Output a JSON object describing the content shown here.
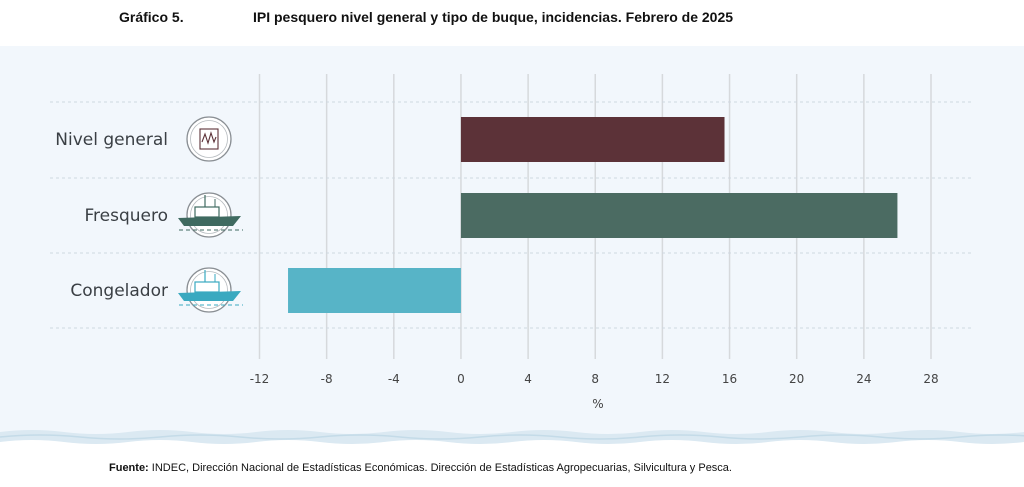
{
  "header": {
    "label": "Gráfico 5.",
    "title": "IPI pesquero nivel general y tipo de buque, incidencias. Febrero de 2025"
  },
  "chart_data": {
    "type": "bar",
    "orientation": "horizontal",
    "categories": [
      "Nivel general",
      "Fresquero",
      "Congelador"
    ],
    "values": [
      15.7,
      26.0,
      -10.3
    ],
    "colors": [
      "#5c3238",
      "#4b6b62",
      "#57b4c7"
    ],
    "icons": [
      "fishing-index-icon",
      "fresh-fish-trawler-icon",
      "freezer-trawler-icon"
    ],
    "xlim": [
      -12,
      28
    ],
    "xticks": [
      -12,
      -8,
      -4,
      0,
      4,
      8,
      12,
      16,
      20,
      24,
      28
    ],
    "xlabel": "%",
    "ylabel": "",
    "grid": true
  },
  "footer": {
    "label": "Fuente:",
    "text": " INDEC, Dirección Nacional de Estadísticas Económicas. Dirección de Estadísticas Agropecuarias, Silvicultura y Pesca."
  }
}
